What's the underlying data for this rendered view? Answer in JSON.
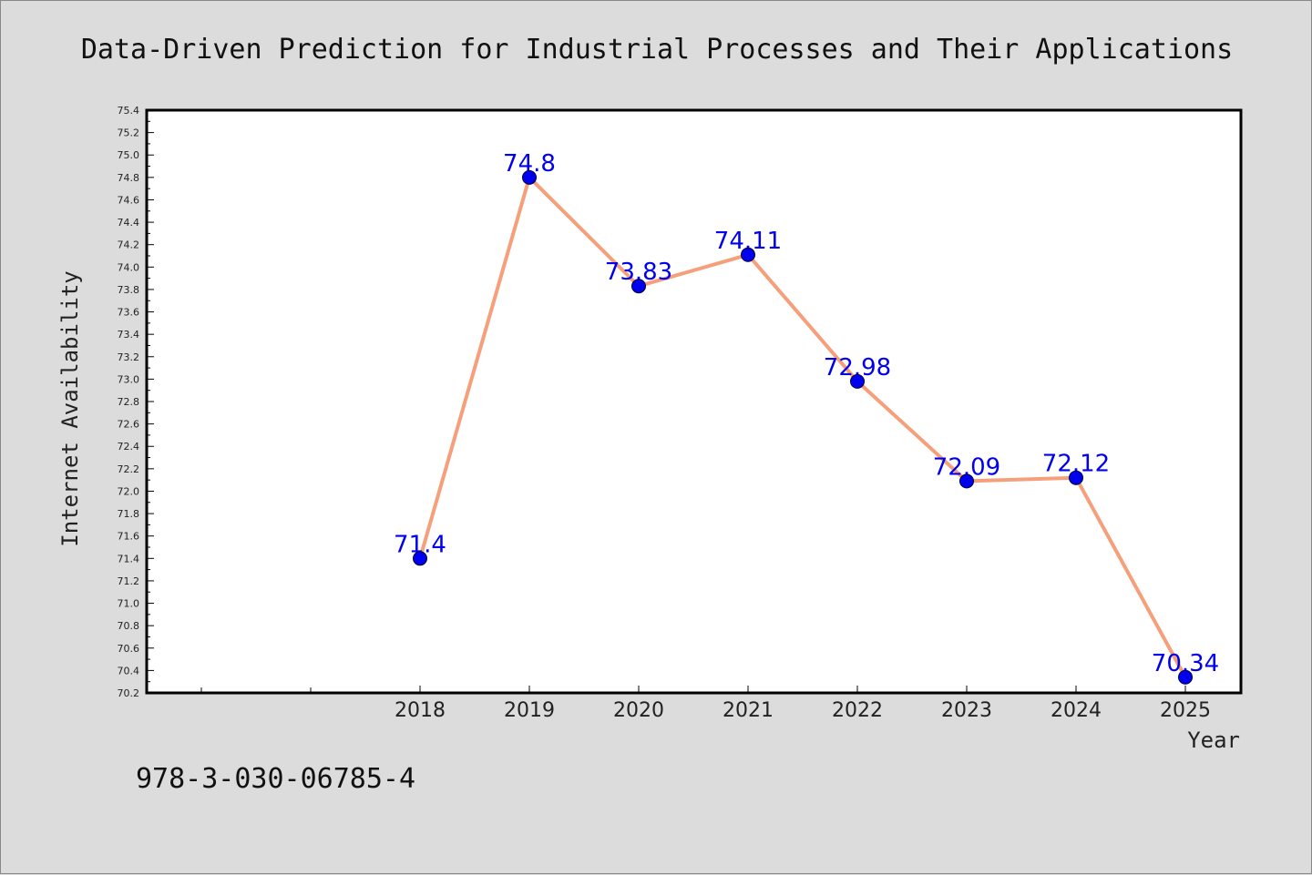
{
  "chart_data": {
    "type": "line",
    "title": "Data-Driven Prediction for Industrial Processes and Their Applications",
    "xlabel": "Year",
    "ylabel": "Internet Availability",
    "x": [
      "2018",
      "2019",
      "2020",
      "2021",
      "2022",
      "2023",
      "2024",
      "2025"
    ],
    "series": [
      {
        "values": [
          71.4,
          74.8,
          73.83,
          74.11,
          72.98,
          72.09,
          72.12,
          70.34
        ],
        "data_labels": [
          "71.4",
          "74.8",
          "73.83",
          "74.11",
          "72.98",
          "72.09",
          "72.12",
          "70.34"
        ],
        "line_color": "#f5a07a",
        "marker_color": "#0000ee"
      }
    ],
    "ylim": [
      70.2,
      75.4
    ],
    "y_ticks": [
      "70.2",
      "70.4",
      "70.6",
      "70.8",
      "71.0",
      "71.2",
      "71.4",
      "71.6",
      "71.8",
      "72.0",
      "72.2",
      "72.4",
      "72.6",
      "72.8",
      "73.0",
      "73.2",
      "73.4",
      "73.6",
      "73.8",
      "74.0",
      "74.2",
      "74.4",
      "74.6",
      "74.8",
      "75.0",
      "75.2",
      "75.4"
    ],
    "grid": false,
    "legend": "none"
  },
  "footer_text": "978-3-030-06785-4"
}
